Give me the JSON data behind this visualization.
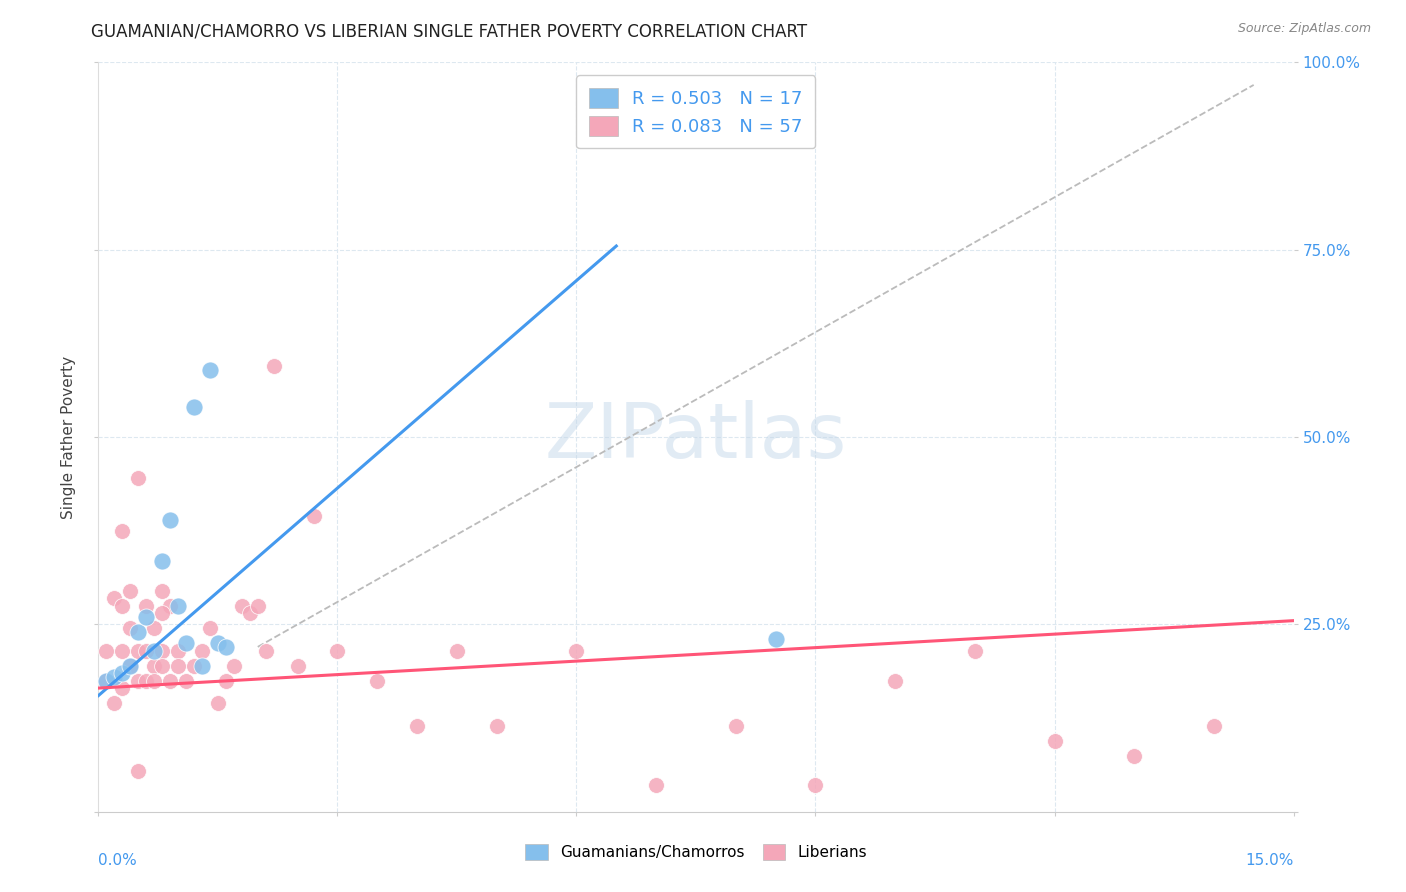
{
  "title": "GUAMANIAN/CHAMORRO VS LIBERIAN SINGLE FATHER POVERTY CORRELATION CHART",
  "source": "Source: ZipAtlas.com",
  "ylabel": "Single Father Poverty",
  "blue_R": 0.503,
  "blue_N": 17,
  "pink_R": 0.083,
  "pink_N": 57,
  "blue_color": "#85BFEC",
  "pink_color": "#F4A7B9",
  "blue_line_color": "#4499EE",
  "pink_line_color": "#FF5577",
  "watermark": "ZIPatlas",
  "background_color": "#FFFFFF",
  "grid_color": "#DDE8F0",
  "xlim": [
    0.0,
    0.15
  ],
  "ylim": [
    0.0,
    1.0
  ],
  "blue_legend_label": "Guamanians/Chamorros",
  "pink_legend_label": "Liberians",
  "blue_line_x": [
    0.0,
    0.065
  ],
  "blue_line_y": [
    0.155,
    0.755
  ],
  "pink_line_x": [
    0.0,
    0.15
  ],
  "pink_line_y": [
    0.165,
    0.255
  ],
  "gray_line_x": [
    0.02,
    0.145
  ],
  "gray_line_y": [
    0.22,
    0.97
  ],
  "blue_pts_x": [
    0.001,
    0.002,
    0.003,
    0.004,
    0.005,
    0.006,
    0.007,
    0.008,
    0.009,
    0.01,
    0.011,
    0.012,
    0.013,
    0.014,
    0.015,
    0.016,
    0.085
  ],
  "blue_pts_y": [
    0.175,
    0.18,
    0.185,
    0.195,
    0.24,
    0.26,
    0.215,
    0.335,
    0.39,
    0.275,
    0.225,
    0.54,
    0.195,
    0.59,
    0.225,
    0.22,
    0.23
  ],
  "pink_pts_x": [
    0.001,
    0.001,
    0.002,
    0.002,
    0.003,
    0.003,
    0.003,
    0.003,
    0.004,
    0.004,
    0.004,
    0.005,
    0.005,
    0.005,
    0.006,
    0.006,
    0.006,
    0.007,
    0.007,
    0.007,
    0.008,
    0.008,
    0.008,
    0.009,
    0.009,
    0.01,
    0.01,
    0.011,
    0.012,
    0.013,
    0.014,
    0.015,
    0.016,
    0.017,
    0.018,
    0.019,
    0.02,
    0.021,
    0.022,
    0.025,
    0.027,
    0.03,
    0.035,
    0.04,
    0.045,
    0.05,
    0.06,
    0.07,
    0.08,
    0.09,
    0.1,
    0.11,
    0.12,
    0.13,
    0.14,
    0.005,
    0.008
  ],
  "pink_pts_y": [
    0.175,
    0.215,
    0.145,
    0.285,
    0.165,
    0.215,
    0.275,
    0.375,
    0.195,
    0.245,
    0.295,
    0.215,
    0.175,
    0.445,
    0.215,
    0.275,
    0.175,
    0.195,
    0.245,
    0.175,
    0.215,
    0.295,
    0.195,
    0.275,
    0.175,
    0.215,
    0.195,
    0.175,
    0.195,
    0.215,
    0.245,
    0.145,
    0.175,
    0.195,
    0.275,
    0.265,
    0.275,
    0.215,
    0.595,
    0.195,
    0.395,
    0.215,
    0.175,
    0.115,
    0.215,
    0.115,
    0.215,
    0.035,
    0.115,
    0.035,
    0.175,
    0.215,
    0.095,
    0.075,
    0.115,
    0.055,
    0.265
  ]
}
